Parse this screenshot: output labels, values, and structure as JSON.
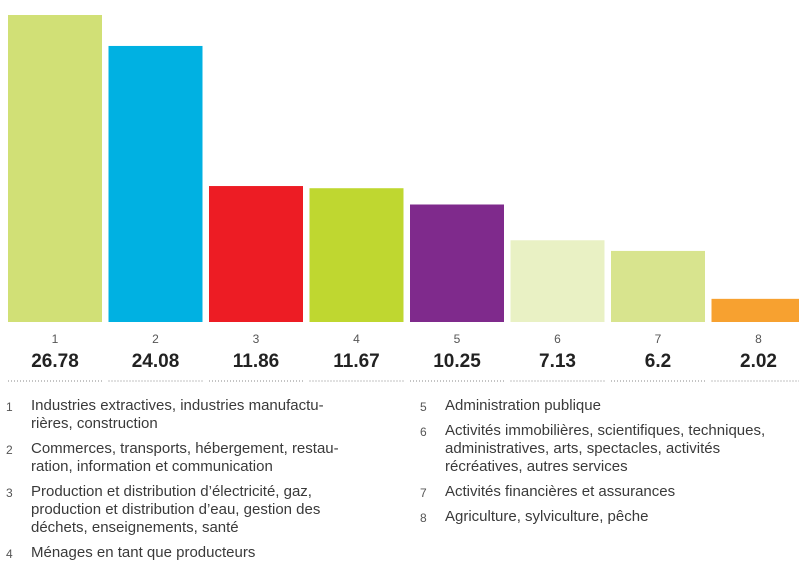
{
  "chart_data": {
    "type": "bar",
    "categories": [
      "1",
      "2",
      "3",
      "4",
      "5",
      "6",
      "7",
      "8"
    ],
    "values": [
      26.78,
      24.08,
      11.86,
      11.67,
      10.25,
      7.13,
      6.2,
      2.02
    ],
    "value_labels": [
      "26.78",
      "24.08",
      "11.86",
      "11.67",
      "10.25",
      "7.13",
      "6.2",
      "2.02"
    ],
    "colors": [
      "#d1e076",
      "#00b1e2",
      "#ed1c24",
      "#bfd730",
      "#7f2a8c",
      "#e9f1c4",
      "#d8e48e",
      "#f7a130"
    ],
    "ylim": [
      0,
      26.78
    ],
    "grid": false,
    "legend_position": "bottom"
  },
  "legend": {
    "items": [
      {
        "num": "1",
        "label": "Industries extractives, industries manufactu-\nrières, construction"
      },
      {
        "num": "2",
        "label": "Commerces, transports, hébergement, restau-\nration, information et communication"
      },
      {
        "num": "3",
        "label": "Production et distribution d’électricité, gaz,\nproduction et distribution d’eau, gestion des\ndéchets, enseignements, santé"
      },
      {
        "num": "4",
        "label": "Ménages en tant que producteurs"
      },
      {
        "num": "5",
        "label": "Administration publique"
      },
      {
        "num": "6",
        "label": "Activités immobilières, scientifiques, techniques,\nadministratives, arts, spectacles, activités\nrécréatives, autres services"
      },
      {
        "num": "7",
        "label": "Activités financières et assurances"
      },
      {
        "num": "8",
        "label": "Agriculture, sylviculture, pêche"
      }
    ]
  }
}
